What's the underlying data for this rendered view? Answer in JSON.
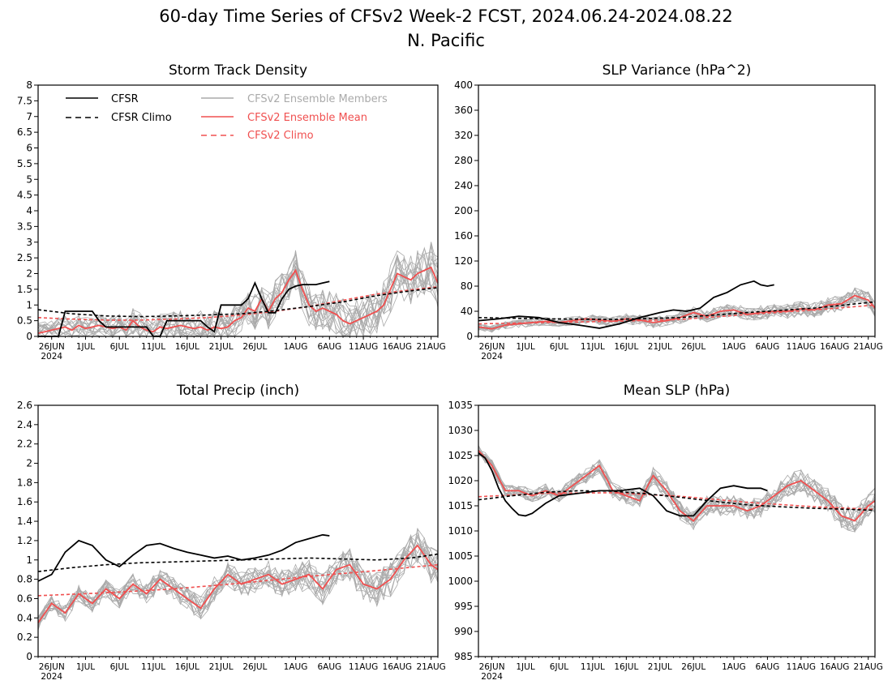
{
  "figure": {
    "title_line1": "60-day Time Series of CFSv2 Week-2 FCST, 2024.06.24-2024.08.22",
    "title_line2": "N. Pacific"
  },
  "legend": {
    "cfsr": "CFSR",
    "cfsr_climo": "CFSR Climo",
    "members": "CFSv2 Ensemble Members",
    "mean": "CFSv2 Ensemble Mean",
    "cfsv2_climo": "CFSv2 Climo"
  },
  "colors": {
    "cfsr": "#000000",
    "members": "#aaaaaa",
    "mean": "#f05050",
    "cfsv2_climo": "#f05050"
  },
  "x_axis": {
    "start_date": "2024-06-24",
    "ticks": [
      {
        "day": 2,
        "label": "26JUN"
      },
      {
        "day": 7,
        "label": "1JUL"
      },
      {
        "day": 12,
        "label": "6JUL"
      },
      {
        "day": 17,
        "label": "11JUL"
      },
      {
        "day": 22,
        "label": "16JUL"
      },
      {
        "day": 27,
        "label": "21JUL"
      },
      {
        "day": 32,
        "label": "26JUL"
      },
      {
        "day": 38,
        "label": "1AUG"
      },
      {
        "day": 43,
        "label": "6AUG"
      },
      {
        "day": 48,
        "label": "11AUG"
      },
      {
        "day": 53,
        "label": "16AUG"
      },
      {
        "day": 58,
        "label": "21AUG"
      }
    ],
    "year_label": "2024",
    "range": [
      0,
      59
    ]
  },
  "chart_data": [
    {
      "type": "line",
      "title": "Storm Track Density",
      "ylim": [
        0,
        8
      ],
      "yticks": [
        "0",
        "0.5",
        "1",
        "1.5",
        "2",
        "2.5",
        "3",
        "3.5",
        "4",
        "4.5",
        "5",
        "5.5",
        "6",
        "6.5",
        "7",
        "7.5",
        "8"
      ],
      "n_members": 16,
      "member_spread": 0.55,
      "series": [
        {
          "name": "CFSR",
          "style": "solid-black",
          "x": [
            0,
            2,
            3,
            4,
            5,
            6,
            7,
            8,
            9,
            10,
            11,
            12,
            13,
            14,
            15,
            16,
            17,
            18,
            19,
            20,
            21,
            22,
            23,
            24,
            25,
            26,
            27,
            28,
            29,
            30,
            31,
            32,
            33,
            34,
            35,
            36,
            37,
            38,
            39,
            40,
            41,
            42,
            43
          ],
          "y": [
            0,
            0,
            0,
            0.8,
            0.8,
            0.8,
            0.8,
            0.8,
            0.5,
            0.3,
            0.3,
            0.3,
            0.3,
            0.3,
            0.3,
            0.3,
            0,
            0,
            0.5,
            0.5,
            0.5,
            0.5,
            0.5,
            0.5,
            0.3,
            0.15,
            1,
            1,
            1,
            1,
            1.2,
            1.7,
            1.2,
            0.75,
            0.75,
            1.2,
            1.5,
            1.6,
            1.65,
            1.65,
            1.65,
            1.7,
            1.75
          ]
        },
        {
          "name": "CFSR Climo",
          "style": "dashed-black",
          "x": [
            0,
            5,
            10,
            15,
            20,
            25,
            30,
            35,
            40,
            45,
            50,
            55,
            59
          ],
          "y": [
            0.85,
            0.72,
            0.65,
            0.63,
            0.65,
            0.68,
            0.72,
            0.82,
            0.95,
            1.1,
            1.3,
            1.45,
            1.55
          ]
        },
        {
          "name": "CFSv2 Ensemble Mean",
          "style": "solid-red",
          "x": [
            0,
            1,
            2,
            3,
            4,
            5,
            6,
            7,
            8,
            9,
            10,
            11,
            12,
            13,
            14,
            15,
            16,
            17,
            18,
            19,
            20,
            21,
            22,
            23,
            24,
            25,
            26,
            27,
            28,
            29,
            30,
            31,
            32,
            33,
            34,
            35,
            36,
            37,
            38,
            39,
            40,
            41,
            42,
            43,
            44,
            45,
            46,
            47,
            48,
            49,
            50,
            51,
            52,
            53,
            54,
            55,
            56,
            57,
            58,
            59
          ],
          "y": [
            0.1,
            0.15,
            0.2,
            0.25,
            0.3,
            0.2,
            0.35,
            0.25,
            0.3,
            0.35,
            0.3,
            0.25,
            0.3,
            0.2,
            0.5,
            0.3,
            0.2,
            0.15,
            0.3,
            0.25,
            0.3,
            0.35,
            0.3,
            0.25,
            0.3,
            0.2,
            0.3,
            0.25,
            0.3,
            0.5,
            0.6,
            0.9,
            0.8,
            1.2,
            0.8,
            1.2,
            1.4,
            1.8,
            2.1,
            1.5,
            1.0,
            0.8,
            0.9,
            0.8,
            0.7,
            0.5,
            0.4,
            0.5,
            0.6,
            0.7,
            0.8,
            1.0,
            1.5,
            2.0,
            1.9,
            1.8,
            2.0,
            2.1,
            2.2,
            1.7
          ]
        },
        {
          "name": "CFSv2 Climo",
          "style": "dashed-red",
          "x": [
            0,
            5,
            10,
            15,
            20,
            25,
            30,
            35,
            40,
            45,
            50,
            55,
            59
          ],
          "y": [
            0.6,
            0.55,
            0.52,
            0.52,
            0.55,
            0.6,
            0.68,
            0.8,
            0.95,
            1.15,
            1.35,
            1.48,
            1.58
          ]
        }
      ]
    },
    {
      "type": "line",
      "title": "SLP Variance (hPa^2)",
      "ylim": [
        0,
        400
      ],
      "yticks": [
        "0",
        "40",
        "80",
        "120",
        "160",
        "200",
        "240",
        "280",
        "320",
        "360",
        "400"
      ],
      "n_members": 16,
      "member_spread": 9,
      "series": [
        {
          "name": "CFSR",
          "style": "solid-black",
          "x": [
            0,
            3,
            6,
            9,
            12,
            15,
            18,
            21,
            24,
            27,
            29,
            31,
            33,
            35,
            37,
            39,
            41,
            42,
            43,
            44
          ],
          "y": [
            25,
            28,
            32,
            30,
            22,
            18,
            13,
            20,
            30,
            38,
            42,
            40,
            45,
            62,
            70,
            82,
            88,
            82,
            80,
            82
          ]
        },
        {
          "name": "CFSR Climo",
          "style": "dashed-black",
          "x": [
            0,
            10,
            20,
            30,
            40,
            50,
            59
          ],
          "y": [
            30,
            28,
            27,
            30,
            38,
            45,
            55
          ]
        },
        {
          "name": "CFSv2 Ensemble Mean",
          "style": "solid-red",
          "x": [
            0,
            2,
            4,
            6,
            8,
            10,
            12,
            14,
            16,
            18,
            20,
            22,
            24,
            26,
            28,
            30,
            32,
            34,
            36,
            38,
            40,
            42,
            44,
            46,
            48,
            50,
            52,
            54,
            56,
            58,
            59
          ],
          "y": [
            15,
            12,
            18,
            20,
            22,
            24,
            22,
            25,
            28,
            26,
            24,
            28,
            26,
            22,
            25,
            30,
            38,
            32,
            40,
            42,
            35,
            38,
            40,
            40,
            44,
            42,
            50,
            52,
            65,
            58,
            45
          ]
        },
        {
          "name": "CFSv2 Climo",
          "style": "dashed-red",
          "x": [
            0,
            10,
            20,
            30,
            40,
            50,
            59
          ],
          "y": [
            20,
            22,
            24,
            27,
            35,
            42,
            50
          ]
        }
      ]
    },
    {
      "type": "line",
      "title": "Total Precip (inch)",
      "ylim": [
        0,
        2.6
      ],
      "yticks": [
        "0",
        "0.2",
        "0.4",
        "0.6",
        "0.8",
        "1",
        "1.2",
        "1.4",
        "1.6",
        "1.8",
        "2",
        "2.2",
        "2.4",
        "2.6"
      ],
      "n_members": 16,
      "member_spread": 0.13,
      "series": [
        {
          "name": "CFSR",
          "style": "solid-black",
          "x": [
            0,
            2,
            4,
            6,
            8,
            10,
            12,
            14,
            16,
            18,
            20,
            22,
            24,
            26,
            28,
            30,
            32,
            34,
            36,
            38,
            40,
            42,
            43
          ],
          "y": [
            0.78,
            0.85,
            1.08,
            1.2,
            1.15,
            1.0,
            0.93,
            1.05,
            1.15,
            1.17,
            1.12,
            1.08,
            1.05,
            1.02,
            1.04,
            1.0,
            1.02,
            1.05,
            1.1,
            1.18,
            1.22,
            1.26,
            1.25
          ]
        },
        {
          "name": "CFSR Climo",
          "style": "dashed-black",
          "x": [
            0,
            5,
            10,
            15,
            20,
            25,
            30,
            35,
            40,
            45,
            50,
            55,
            59
          ],
          "y": [
            0.88,
            0.92,
            0.95,
            0.97,
            0.98,
            0.99,
            1.0,
            1.01,
            1.02,
            1.01,
            1.0,
            1.02,
            1.06
          ]
        },
        {
          "name": "CFSv2 Ensemble Mean",
          "style": "solid-red",
          "x": [
            0,
            2,
            4,
            6,
            8,
            10,
            12,
            14,
            16,
            18,
            20,
            22,
            24,
            26,
            28,
            30,
            32,
            34,
            36,
            38,
            40,
            42,
            44,
            46,
            48,
            50,
            52,
            54,
            56,
            58,
            59
          ],
          "y": [
            0.35,
            0.55,
            0.45,
            0.65,
            0.55,
            0.7,
            0.6,
            0.75,
            0.65,
            0.8,
            0.7,
            0.6,
            0.5,
            0.7,
            0.85,
            0.75,
            0.8,
            0.85,
            0.75,
            0.8,
            0.85,
            0.7,
            0.9,
            0.95,
            0.75,
            0.7,
            0.8,
            1.0,
            1.15,
            0.95,
            0.9
          ]
        },
        {
          "name": "CFSv2 Climo",
          "style": "dashed-red",
          "x": [
            0,
            10,
            20,
            30,
            40,
            50,
            59
          ],
          "y": [
            0.63,
            0.66,
            0.7,
            0.76,
            0.83,
            0.89,
            0.95
          ]
        }
      ]
    },
    {
      "type": "line",
      "title": "Mean SLP (hPa)",
      "ylim": [
        985,
        1035
      ],
      "yticks": [
        "985",
        "990",
        "995",
        "1000",
        "1005",
        "1010",
        "1015",
        "1020",
        "1025",
        "1030",
        "1035"
      ],
      "n_members": 16,
      "member_spread": 1.8,
      "series": [
        {
          "name": "CFSR",
          "style": "solid-black",
          "x": [
            0,
            1,
            2,
            3,
            4,
            5,
            6,
            7,
            8,
            10,
            12,
            15,
            18,
            21,
            24,
            26,
            28,
            30,
            32,
            34,
            36,
            38,
            40,
            42,
            43
          ],
          "y": [
            1025.5,
            1024.5,
            1022,
            1018.5,
            1016,
            1014.5,
            1013.2,
            1013,
            1013.5,
            1015.5,
            1017,
            1017.5,
            1018,
            1018,
            1018.5,
            1017,
            1014,
            1013,
            1013,
            1016,
            1018.5,
            1019,
            1018.5,
            1018.5,
            1018
          ]
        },
        {
          "name": "CFSR Climo",
          "style": "dashed-black",
          "x": [
            0,
            5,
            10,
            15,
            20,
            25,
            30,
            35,
            40,
            45,
            50,
            55,
            59
          ],
          "y": [
            1016.2,
            1017,
            1017.7,
            1018,
            1017.9,
            1017.4,
            1016.7,
            1015.9,
            1015.2,
            1014.8,
            1014.5,
            1014.3,
            1014.1
          ]
        },
        {
          "name": "CFSv2 Ensemble Mean",
          "style": "solid-red",
          "x": [
            0,
            2,
            4,
            6,
            8,
            10,
            12,
            14,
            16,
            18,
            20,
            22,
            24,
            26,
            28,
            30,
            32,
            34,
            36,
            38,
            40,
            42,
            44,
            46,
            48,
            50,
            52,
            54,
            56,
            58,
            59
          ],
          "y": [
            1026,
            1023,
            1018,
            1018,
            1017,
            1018,
            1017,
            1019,
            1021,
            1023,
            1018,
            1017,
            1016,
            1021,
            1018,
            1014,
            1012,
            1015,
            1015,
            1015,
            1014,
            1015,
            1017,
            1019,
            1020,
            1018,
            1016,
            1013,
            1012,
            1015,
            1016
          ]
        },
        {
          "name": "CFSv2 Climo",
          "style": "dashed-red",
          "x": [
            0,
            10,
            20,
            30,
            40,
            50,
            59
          ],
          "y": [
            1016.8,
            1017.5,
            1017.6,
            1016.9,
            1015.7,
            1014.8,
            1014.3
          ]
        }
      ]
    }
  ]
}
